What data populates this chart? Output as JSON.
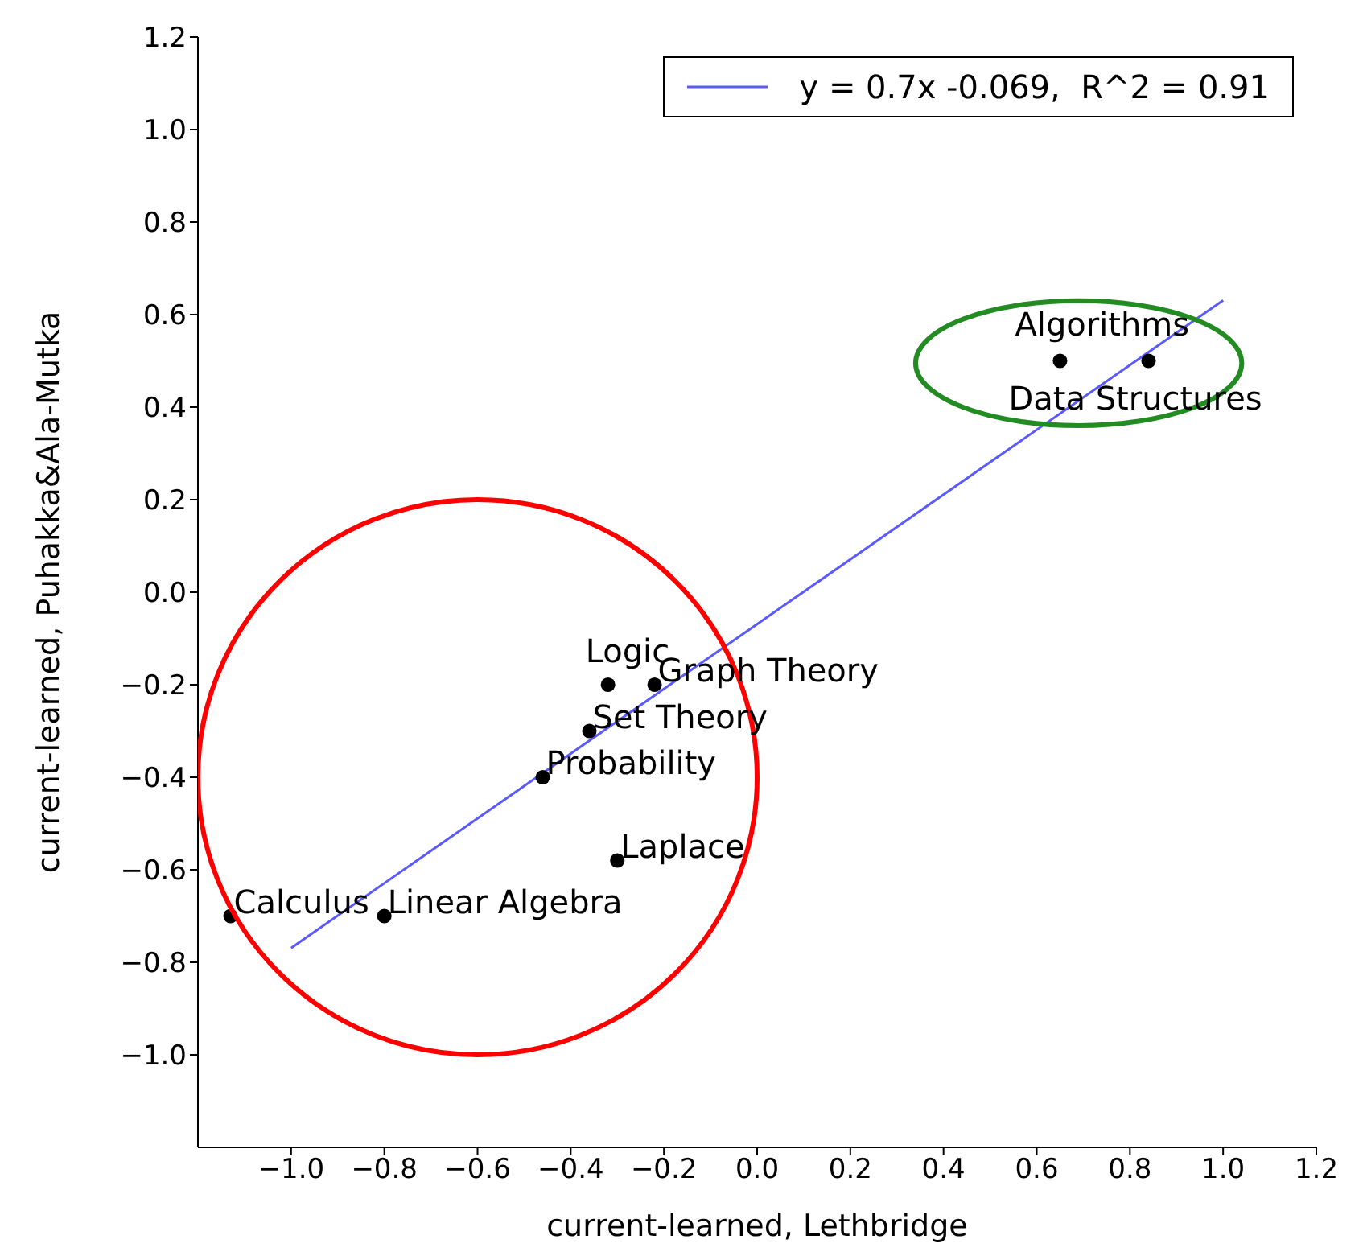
{
  "chart_data": {
    "type": "scatter",
    "xlabel": "current-learned, Lethbridge",
    "ylabel": "current-learned, Puhakka&Ala-Mutka",
    "series": [
      {
        "color": "#000000",
        "marker": "circle",
        "x": [
          -1.13,
          -0.8,
          -0.46,
          -0.36,
          -0.32,
          -0.22,
          -0.3,
          0.65,
          0.84
        ],
        "values": [
          -0.7,
          -0.7,
          -0.4,
          -0.3,
          -0.2,
          -0.2,
          -0.58,
          0.5,
          0.5
        ]
      },
      {
        "type": "line",
        "marker": "none",
        "name": "y = 0.7x -0.069,  R^2 = 0.91",
        "color": "#5a5aff",
        "x": [
          -1.0,
          1.0
        ],
        "values": [
          -0.769,
          0.631
        ]
      }
    ],
    "annotations": [
      {
        "text": "Calculus",
        "x": -1.13,
        "y": -0.7
      },
      {
        "text": "Linear Algebra",
        "x": -0.8,
        "y": -0.7
      },
      {
        "text": "Probability",
        "x": -0.46,
        "y": -0.4
      },
      {
        "text": "Set Theory",
        "x": -0.36,
        "y": -0.3
      },
      {
        "text": "Logic",
        "x": -0.32,
        "y": -0.2
      },
      {
        "text": "Graph Theory",
        "x": -0.22,
        "y": -0.2
      },
      {
        "text": "Laplace",
        "x": -0.3,
        "y": -0.58
      },
      {
        "text": "Algorithms",
        "x": 0.65,
        "y": 0.5
      },
      {
        "text": "Data Structures",
        "x": 0.84,
        "y": 0.5
      }
    ],
    "xlim": [
      -1.2,
      1.2
    ],
    "xticks": [
      {
        "value": -1.0,
        "label": "−1.0"
      },
      {
        "value": -0.8,
        "label": "−0.8"
      },
      {
        "value": -0.6,
        "label": "−0.6"
      },
      {
        "value": -0.4,
        "label": "−0.4"
      },
      {
        "value": -0.2,
        "label": "−0.2"
      },
      {
        "value": 0.0,
        "label": "0.0"
      },
      {
        "value": 0.2,
        "label": "0.2"
      },
      {
        "value": 0.4,
        "label": "0.4"
      },
      {
        "value": 0.6,
        "label": "0.6"
      },
      {
        "value": 0.8,
        "label": "0.8"
      },
      {
        "value": 1.0,
        "label": "1.0"
      },
      {
        "value": 1.2,
        "label": "1.2"
      }
    ],
    "ylim": [
      -1.2,
      1.2
    ],
    "yticks": [
      {
        "value": -1.0,
        "label": "−1.0"
      },
      {
        "value": -0.8,
        "label": "−0.8"
      },
      {
        "value": -0.6,
        "label": "−0.6"
      },
      {
        "value": -0.4,
        "label": "−0.4"
      },
      {
        "value": -0.2,
        "label": "−0.2"
      },
      {
        "value": 0.0,
        "label": "0.0"
      },
      {
        "value": 0.2,
        "label": "0.2"
      },
      {
        "value": 0.4,
        "label": "0.4"
      },
      {
        "value": 0.6,
        "label": "0.6"
      },
      {
        "value": 0.8,
        "label": "0.8"
      },
      {
        "value": 1.0,
        "label": "1.0"
      },
      {
        "value": 1.2,
        "label": "1.2"
      }
    ],
    "legend": "top right"
  }
}
